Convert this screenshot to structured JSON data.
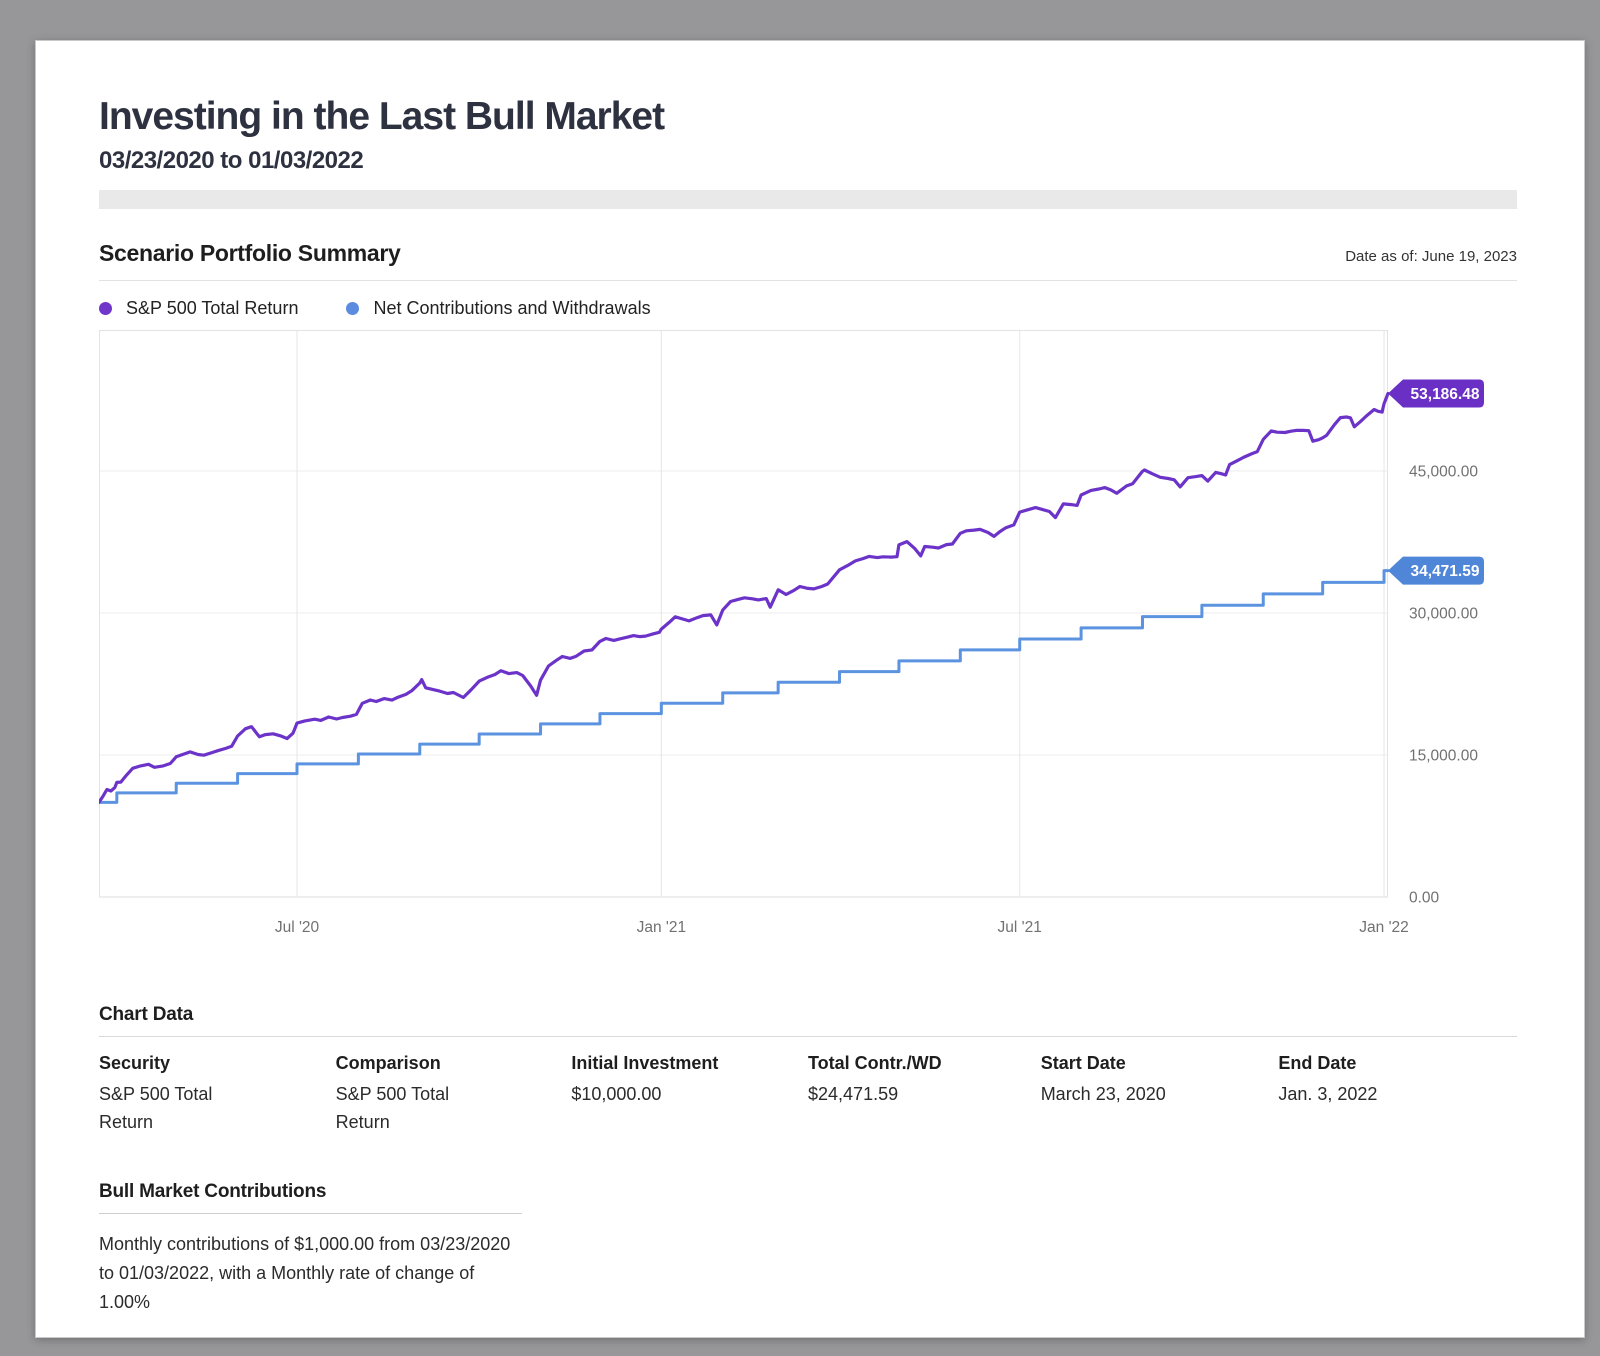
{
  "page": {
    "title": "Investing in the Last Bull Market",
    "subtitle": "03/23/2020 to 01/03/2022"
  },
  "summary": {
    "heading": "Scenario Portfolio Summary",
    "date_as_of": "Date as of: June 19, 2023"
  },
  "legend": [
    {
      "label": "S&P 500 Total Return",
      "color": "#7036ca"
    },
    {
      "label": "Net Contributions and Withdrawals",
      "color": "#5b8ce0"
    }
  ],
  "chart_data": {
    "type": "line",
    "x_domain_days": 651,
    "x_start_date": "03/23/2020",
    "x_end_date": "01/03/2022",
    "ylim": [
      0,
      59890
    ],
    "grid": true,
    "colors": {
      "sp500_line": "#6c33c9",
      "sp500_tag": "#6a2fc5",
      "contrib_line": "#5b93e0",
      "contrib_tag": "#4f86d8",
      "gridline": "#ececec",
      "vgridline": "#e6e6e6",
      "plot_border": "#e3e3e3",
      "axis_text": "#717171"
    },
    "y_ticks": [
      {
        "v": 45000,
        "label": "45,000.00"
      },
      {
        "v": 30000,
        "label": "30,000.00"
      },
      {
        "v": 15000,
        "label": "15,000.00"
      },
      {
        "v": 0,
        "label": "0.00"
      }
    ],
    "x_ticks": [
      {
        "day": 100,
        "label": "Jul '20"
      },
      {
        "day": 284,
        "label": "Jan '21"
      },
      {
        "day": 465,
        "label": "Jul '21"
      },
      {
        "day": 649,
        "label": "Jan '22"
      }
    ],
    "series": [
      {
        "name": "S&P 500 Total Return",
        "kind": "line",
        "end_value": 53186.48,
        "end_label": "53,186.48",
        "points": [
          [
            0,
            10000
          ],
          [
            2,
            10650
          ],
          [
            4,
            11357
          ],
          [
            6,
            11200
          ],
          [
            8,
            11554
          ],
          [
            9,
            12100
          ],
          [
            11,
            12132
          ],
          [
            14,
            12900
          ],
          [
            17,
            13599
          ],
          [
            21,
            13850
          ],
          [
            25,
            14013
          ],
          [
            28,
            13700
          ],
          [
            32,
            13828
          ],
          [
            36,
            14100
          ],
          [
            39,
            14808
          ],
          [
            43,
            15100
          ],
          [
            46,
            15327
          ],
          [
            50,
            15050
          ],
          [
            53,
            14982
          ],
          [
            57,
            15250
          ],
          [
            60,
            15458
          ],
          [
            64,
            15700
          ],
          [
            67,
            15924
          ],
          [
            70,
            17006
          ],
          [
            74,
            17774
          ],
          [
            77,
            17986
          ],
          [
            81,
            16923
          ],
          [
            84,
            17150
          ],
          [
            88,
            17240
          ],
          [
            92,
            17000
          ],
          [
            95,
            16745
          ],
          [
            98,
            17300
          ],
          [
            100,
            18370
          ],
          [
            104,
            18600
          ],
          [
            109,
            18778
          ],
          [
            112,
            18650
          ],
          [
            116,
            19014
          ],
          [
            120,
            18800
          ],
          [
            123,
            18960
          ],
          [
            127,
            19100
          ],
          [
            130,
            19284
          ],
          [
            133,
            20460
          ],
          [
            137,
            20813
          ],
          [
            140,
            20650
          ],
          [
            144,
            20951
          ],
          [
            148,
            20800
          ],
          [
            151,
            21100
          ],
          [
            155,
            21400
          ],
          [
            158,
            21789
          ],
          [
            162,
            22600
          ],
          [
            163,
            22958
          ],
          [
            165,
            22100
          ],
          [
            169,
            21900
          ],
          [
            172,
            21748
          ],
          [
            176,
            21500
          ],
          [
            179,
            21604
          ],
          [
            184,
            21071
          ],
          [
            188,
            21900
          ],
          [
            192,
            22800
          ],
          [
            196,
            23200
          ],
          [
            200,
            23500
          ],
          [
            203,
            23900
          ],
          [
            207,
            23600
          ],
          [
            211,
            23700
          ],
          [
            214,
            23400
          ],
          [
            218,
            22300
          ],
          [
            221,
            21300
          ],
          [
            223,
            22900
          ],
          [
            227,
            24400
          ],
          [
            231,
            25000
          ],
          [
            234,
            25400
          ],
          [
            238,
            25200
          ],
          [
            241,
            25430
          ],
          [
            245,
            25981
          ],
          [
            249,
            26100
          ],
          [
            253,
            27000
          ],
          [
            256,
            27300
          ],
          [
            260,
            27100
          ],
          [
            263,
            27264
          ],
          [
            267,
            27450
          ],
          [
            270,
            27606
          ],
          [
            273,
            27500
          ],
          [
            276,
            27562
          ],
          [
            280,
            27800
          ],
          [
            283,
            27956
          ],
          [
            284,
            28300
          ],
          [
            288,
            29000
          ],
          [
            291,
            29600
          ],
          [
            295,
            29350
          ],
          [
            298,
            29160
          ],
          [
            302,
            29500
          ],
          [
            305,
            29724
          ],
          [
            309,
            29793
          ],
          [
            312,
            28741
          ],
          [
            315,
            30301
          ],
          [
            319,
            31217
          ],
          [
            323,
            31450
          ],
          [
            326,
            31604
          ],
          [
            330,
            31500
          ],
          [
            333,
            31379
          ],
          [
            337,
            31523
          ],
          [
            339,
            30608
          ],
          [
            343,
            32453
          ],
          [
            347,
            31955
          ],
          [
            351,
            32400
          ],
          [
            354,
            32794
          ],
          [
            358,
            32600
          ],
          [
            361,
            32545
          ],
          [
            365,
            32800
          ],
          [
            368,
            33060
          ],
          [
            374,
            34561
          ],
          [
            378,
            35000
          ],
          [
            382,
            35498
          ],
          [
            386,
            35750
          ],
          [
            389,
            35981
          ],
          [
            393,
            35850
          ],
          [
            396,
            35936
          ],
          [
            400,
            35900
          ],
          [
            403,
            35946
          ],
          [
            404,
            37188
          ],
          [
            408,
            37541
          ],
          [
            412,
            36800
          ],
          [
            415,
            36033
          ],
          [
            417,
            37017
          ],
          [
            421,
            36950
          ],
          [
            424,
            36859
          ],
          [
            428,
            37226
          ],
          [
            431,
            37287
          ],
          [
            435,
            38417
          ],
          [
            438,
            38675
          ],
          [
            442,
            38750
          ],
          [
            445,
            38830
          ],
          [
            449,
            38500
          ],
          [
            452,
            38090
          ],
          [
            455,
            38600
          ],
          [
            458,
            39004
          ],
          [
            462,
            39300
          ],
          [
            465,
            40656
          ],
          [
            469,
            40900
          ],
          [
            473,
            41130
          ],
          [
            477,
            40900
          ],
          [
            480,
            40723
          ],
          [
            483,
            40075
          ],
          [
            487,
            41525
          ],
          [
            491,
            41450
          ],
          [
            494,
            41366
          ],
          [
            496,
            42460
          ],
          [
            501,
            42947
          ],
          [
            505,
            43100
          ],
          [
            508,
            43246
          ],
          [
            511,
            43000
          ],
          [
            514,
            42646
          ],
          [
            519,
            43421
          ],
          [
            522,
            43644
          ],
          [
            527,
            44970
          ],
          [
            528,
            45103
          ],
          [
            532,
            44700
          ],
          [
            536,
            44327
          ],
          [
            540,
            44200
          ],
          [
            543,
            44069
          ],
          [
            546,
            43322
          ],
          [
            550,
            44287
          ],
          [
            554,
            44400
          ],
          [
            557,
            44507
          ],
          [
            560,
            43926
          ],
          [
            564,
            44854
          ],
          [
            567,
            44700
          ],
          [
            569,
            44578
          ],
          [
            571,
            45673
          ],
          [
            575,
            46100
          ],
          [
            578,
            46429
          ],
          [
            582,
            46800
          ],
          [
            585,
            47041
          ],
          [
            588,
            48341
          ],
          [
            592,
            49222
          ],
          [
            595,
            49100
          ],
          [
            599,
            49063
          ],
          [
            602,
            49200
          ],
          [
            605,
            49295
          ],
          [
            608,
            49280
          ],
          [
            611,
            49253
          ],
          [
            613,
            48142
          ],
          [
            616,
            48300
          ],
          [
            618,
            48502
          ],
          [
            620,
            48771
          ],
          [
            624,
            49900
          ],
          [
            627,
            50642
          ],
          [
            630,
            50700
          ],
          [
            632,
            50620
          ],
          [
            634,
            49663
          ],
          [
            637,
            50200
          ],
          [
            640,
            50795
          ],
          [
            644,
            51488
          ],
          [
            646,
            51300
          ],
          [
            648,
            51221
          ],
          [
            649,
            52100
          ],
          [
            651,
            53186.48
          ]
        ]
      },
      {
        "name": "Net Contributions and Withdrawals",
        "kind": "step",
        "start_value": 10000,
        "end_value": 34471.59,
        "end_label": "34,471.59",
        "steps": [
          [
            9,
            11000.0
          ],
          [
            39,
            12010.0
          ],
          [
            70,
            13030.1
          ],
          [
            100,
            14060.4
          ],
          [
            131,
            15101.01
          ],
          [
            162,
            16152.02
          ],
          [
            192,
            17213.54
          ],
          [
            223,
            18285.67
          ],
          [
            253,
            19368.53
          ],
          [
            284,
            20462.21
          ],
          [
            315,
            21566.83
          ],
          [
            343,
            22682.5
          ],
          [
            374,
            23809.33
          ],
          [
            404,
            24947.42
          ],
          [
            435,
            26096.9
          ],
          [
            465,
            27257.86
          ],
          [
            496,
            28430.44
          ],
          [
            527,
            29614.75
          ],
          [
            557,
            30810.9
          ],
          [
            588,
            32019.0
          ],
          [
            618,
            33239.19
          ],
          [
            649,
            34471.59
          ]
        ]
      }
    ]
  },
  "details": {
    "heading": "Chart Data",
    "fields": [
      {
        "label": "Security",
        "value": "S&P 500 Total Return"
      },
      {
        "label": "Comparison",
        "value": "S&P 500 Total Return"
      },
      {
        "label": "Initial Investment",
        "value": "$10,000.00"
      },
      {
        "label": "Total Contr./WD",
        "value": "$24,471.59"
      },
      {
        "label": "Start Date",
        "value": "March 23, 2020"
      },
      {
        "label": "End Date",
        "value": "Jan. 3, 2022"
      }
    ]
  },
  "contributions": {
    "heading": "Bull Market Contributions",
    "text": "Monthly contributions of $1,000.00 from 03/23/2020 to 01/03/2022, with a Monthly rate of change of 1.00%"
  }
}
